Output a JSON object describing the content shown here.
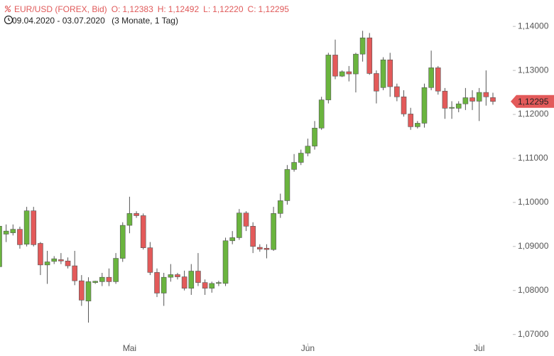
{
  "header": {
    "title": "EUR/USD (FOREX, Bid)",
    "quotes": [
      {
        "label": "O:",
        "value": "1,12383"
      },
      {
        "label": "H:",
        "value": "1,12492"
      },
      {
        "label": "L:",
        "value": "1,12220"
      },
      {
        "label": "C:",
        "value": "1,12295"
      }
    ],
    "range": "09.04.2020 - 03.07.2020",
    "period": "(3 Monate, 1 Tag)"
  },
  "chart_data": {
    "type": "candlestick",
    "categories": [
      null,
      null,
      null,
      null,
      null,
      null,
      null,
      null,
      null,
      null,
      null,
      null,
      null,
      null,
      null,
      null,
      null,
      null,
      null,
      "Mai",
      null,
      null,
      null,
      null,
      null,
      null,
      null,
      null,
      null,
      null,
      null,
      null,
      null,
      null,
      null,
      null,
      null,
      null,
      null,
      null,
      null,
      null,
      null,
      null,
      null,
      "Jun",
      null,
      null,
      null,
      null,
      null,
      null,
      null,
      null,
      null,
      null,
      null,
      null,
      null,
      null,
      null,
      null,
      null,
      null,
      null,
      null,
      null,
      null,
      null,
      null,
      "Jul",
      null,
      null
    ],
    "open": [
      1.0854,
      1.0928,
      1.0931,
      1.0939,
      1.0905,
      1.0981,
      1.0907,
      1.0858,
      1.0866,
      1.087,
      1.0867,
      1.0856,
      1.0822,
      1.0776,
      1.0818,
      1.082,
      1.083,
      1.082,
      1.0873,
      1.0948,
      1.0975,
      1.097,
      1.0897,
      1.0841,
      1.0794,
      1.083,
      1.0836,
      1.0831,
      1.0805,
      1.0844,
      1.0818,
      1.0805,
      1.0816,
      1.0816,
      1.0913,
      1.092,
      1.0976,
      1.0946,
      1.0898,
      1.0896,
      1.0893,
      1.0975,
      1.1004,
      1.1075,
      1.1091,
      1.1112,
      1.1128,
      1.1169,
      1.1233,
      1.1335,
      1.1287,
      1.1297,
      1.1292,
      1.1337,
      1.1374,
      1.1293,
      1.1261,
      1.1324,
      1.1263,
      1.124,
      1.1201,
      1.1172,
      1.118,
      1.1261,
      1.1306,
      1.1253,
      1.1214,
      1.1214,
      1.1224,
      1.1238,
      1.123,
      1.125,
      1.12383
    ],
    "high": [
      1.0955,
      1.095,
      1.095,
      1.0945,
      1.099,
      1.099,
      1.091,
      1.089,
      1.0878,
      1.0885,
      1.0875,
      1.089,
      1.0835,
      1.083,
      1.0822,
      1.084,
      1.085,
      1.0885,
      1.0955,
      1.1013,
      1.098,
      1.0975,
      1.091,
      1.085,
      1.084,
      1.086,
      1.084,
      1.0845,
      1.086,
      1.0885,
      1.0825,
      1.082,
      1.0822,
      1.092,
      1.0935,
      1.0985,
      1.098,
      1.0955,
      1.0905,
      1.0905,
      1.099,
      1.102,
      1.1085,
      1.111,
      1.112,
      1.1145,
      1.1185,
      1.124,
      1.134,
      1.137,
      1.13,
      1.131,
      1.134,
      1.139,
      1.1385,
      1.13,
      1.133,
      1.134,
      1.127,
      1.1255,
      1.1215,
      1.1185,
      1.127,
      1.1345,
      1.131,
      1.126,
      1.123,
      1.123,
      1.126,
      1.1255,
      1.126,
      1.13,
      1.12492
    ],
    "low": [
      1.085,
      1.091,
      1.0925,
      1.0895,
      1.09,
      1.09,
      1.0835,
      1.0815,
      1.086,
      1.086,
      1.085,
      1.0812,
      1.0765,
      1.0727,
      1.0815,
      1.081,
      1.081,
      1.0815,
      1.0865,
      1.093,
      1.0965,
      1.0893,
      1.0835,
      1.0785,
      1.0765,
      1.082,
      1.0825,
      1.08,
      1.079,
      1.081,
      1.079,
      1.0795,
      1.081,
      1.081,
      1.0905,
      1.0915,
      1.0935,
      1.0885,
      1.0888,
      1.0873,
      1.089,
      1.0965,
      1.0995,
      1.107,
      1.1085,
      1.1105,
      1.112,
      1.1165,
      1.1225,
      1.128,
      1.1285,
      1.1275,
      1.125,
      1.132,
      1.129,
      1.1225,
      1.1255,
      1.124,
      1.123,
      1.1195,
      1.1165,
      1.1168,
      1.117,
      1.1255,
      1.1245,
      1.119,
      1.119,
      1.1205,
      1.121,
      1.121,
      1.1185,
      1.122,
      1.1222
    ],
    "close": [
      1.0946,
      1.0935,
      1.0939,
      1.0904,
      1.0981,
      1.0904,
      1.0858,
      1.0865,
      1.0872,
      1.0867,
      1.0856,
      1.0822,
      1.0778,
      1.082,
      1.0821,
      1.083,
      1.082,
      1.0873,
      1.0948,
      1.0975,
      1.097,
      1.0897,
      1.0841,
      1.0794,
      1.083,
      1.0836,
      1.0831,
      1.0805,
      1.0844,
      1.0818,
      1.0805,
      1.0816,
      1.0818,
      1.0913,
      1.092,
      1.0976,
      1.0946,
      1.09,
      1.0894,
      1.0893,
      1.0975,
      1.1004,
      1.1075,
      1.1091,
      1.1112,
      1.1128,
      1.1169,
      1.1233,
      1.1335,
      1.1287,
      1.1297,
      1.1292,
      1.1337,
      1.1374,
      1.1293,
      1.1253,
      1.1324,
      1.1263,
      1.124,
      1.1201,
      1.1172,
      1.118,
      1.1261,
      1.1306,
      1.1253,
      1.1214,
      1.1216,
      1.1224,
      1.1238,
      1.123,
      1.125,
      1.124,
      1.12295
    ],
    "up_color": "#6ab43e",
    "down_color": "#e35a5a",
    "ylim": [
      1.0685,
      1.146
    ],
    "yticks": [
      {
        "value": 1.07,
        "label": "1,07000"
      },
      {
        "value": 1.08,
        "label": "1,08000"
      },
      {
        "value": 1.09,
        "label": "1,09000"
      },
      {
        "value": 1.1,
        "label": "1,10000"
      },
      {
        "value": 1.11,
        "label": "1,11000"
      },
      {
        "value": 1.12,
        "label": "1,12000"
      },
      {
        "value": 1.13,
        "label": "1,13000"
      },
      {
        "value": 1.14,
        "label": "1,14000"
      }
    ],
    "last_price": {
      "value": 1.12295,
      "label": "1,12295"
    }
  }
}
